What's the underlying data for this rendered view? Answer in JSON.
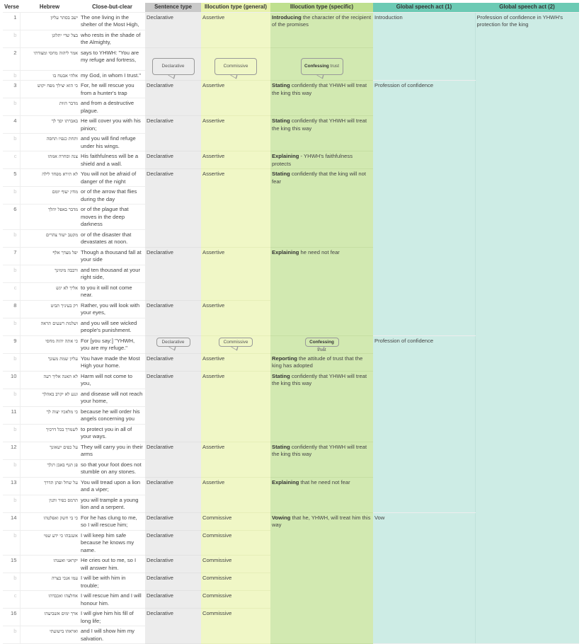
{
  "headers": [
    "Verse",
    "Hebrew",
    "Close-but-clear",
    "Sentence type",
    "Illocution type (general)",
    "Illocution type (specific)",
    "Global speech act (1)",
    "Global speech act (2)"
  ],
  "rows": [
    {
      "verse": "1",
      "hebrew": "ישב בסתר עליון",
      "english": "The one living in the shelter of the Most High,"
    },
    {
      "verse": "b",
      "hebrew": "בצל שדי יתלונן",
      "english": "who rests in the shade of the Almighty,"
    },
    {
      "verse": "2",
      "hebrew": "אמר ליהוה מחסי ומצודתי",
      "english": "says to YHWH: \"You are my refuge and fortress,"
    },
    {
      "verse": "b",
      "hebrew": "אלהי אבטח בו",
      "english": "my God, in whom I trust.\""
    },
    {
      "verse": "3",
      "hebrew": "כי הוא יצילך מפח יקוש",
      "english": "For, he will rescue you from a hunter's trap"
    },
    {
      "verse": "b",
      "hebrew": "מדבר הוות",
      "english": "and from a destructive plague."
    },
    {
      "verse": "4",
      "hebrew": "באברתו יסך לך",
      "english": "He will cover you with his pinion;"
    },
    {
      "verse": "b",
      "hebrew": "ותחת כנפיו תחסה",
      "english": "and you will find refuge under his wings."
    },
    {
      "verse": "c",
      "hebrew": "צנה וסחרה אמתו",
      "english": "His faithfulness will be a shield and a wall."
    },
    {
      "verse": "5",
      "hebrew": "לא תירא מפחד לילה",
      "english": "You will not be afraid of danger of the night"
    },
    {
      "verse": "b",
      "hebrew": "מחץ יעוף יומם",
      "english": "or of the arrow that flies during the day"
    },
    {
      "verse": "6",
      "hebrew": "מדבר באפל יהלך",
      "english": "or of the plague that moves in the deep darkness"
    },
    {
      "verse": "b",
      "hebrew": "מקטב ישוד צהרים",
      "english": "or of the disaster that devastates at noon."
    },
    {
      "verse": "7",
      "hebrew": "יפל מצדך אלף",
      "english": "Though a thousand fall at your side"
    },
    {
      "verse": "b",
      "hebrew": "ורבבה מימינך",
      "english": "and ten thousand at your right side,"
    },
    {
      "verse": "c",
      "hebrew": "אליך לא יגש",
      "english": "to you it will not come near."
    },
    {
      "verse": "8",
      "hebrew": "רק בעיניך תביט",
      "english": "Rather, you will look with your eyes,"
    },
    {
      "verse": "b",
      "hebrew": "ושלמת רשעים תראה",
      "english": "and you will see wicked people's punishment."
    },
    {
      "verse": "9",
      "hebrew": "כי אתה יהוה מחסי",
      "english": "For [you say:] \"YHWH, you are my refuge.\""
    },
    {
      "verse": "b",
      "hebrew": "עליון שמת מעונך",
      "english": "You have made the Most High your home."
    },
    {
      "verse": "10",
      "hebrew": "לא תאנה אליך רעה",
      "english": "Harm will not come to you,"
    },
    {
      "verse": "b",
      "hebrew": "ונגע לא יקרב באהלך",
      "english": "and disease will not reach your home,"
    },
    {
      "verse": "11",
      "hebrew": "כי מלאכיו יצוה לך",
      "english": "because he will order his angels concerning you"
    },
    {
      "verse": "b",
      "hebrew": "לשמרך בכל דרכיך",
      "english": "to protect you in all of your ways."
    },
    {
      "verse": "12",
      "hebrew": "על כפים ישאונך",
      "english": "They will carry you in their arms"
    },
    {
      "verse": "b",
      "hebrew": "פן תגף באבן רגלך",
      "english": "so that your foot does not stumble on any stones."
    },
    {
      "verse": "13",
      "hebrew": "על שחל ופתן תדרך",
      "english": "You will tread upon a lion and a viper;"
    },
    {
      "verse": "b",
      "hebrew": "תרמס כפיר ותנין",
      "english": "you will trample a young lion and a serpent."
    },
    {
      "verse": "14",
      "hebrew": "כי בי חשק ואפלטהו",
      "english": "For he has clung to me, so I will rescue him;"
    },
    {
      "verse": "b",
      "hebrew": "אשגבהו כי ידע שמי",
      "english": "I will keep him safe because he knows my name."
    },
    {
      "verse": "15",
      "hebrew": "יקראני ואענהו",
      "english": "He cries out to me, so I will answer him."
    },
    {
      "verse": "b",
      "hebrew": "עמו אנכי בצרה",
      "english": "I will be with him in trouble;"
    },
    {
      "verse": "c",
      "hebrew": "אחלצהו ואכבדהו",
      "english": "I will rescue him and I will honour him."
    },
    {
      "verse": "16",
      "hebrew": "ארך ימים אשביעהו",
      "english": "I will give him his fill of long life;"
    },
    {
      "verse": "b",
      "hebrew": "ואראהו בישועתי",
      "english": "and I will show him my salvation."
    }
  ],
  "sentence_type": [
    {
      "start": 0,
      "span": 2,
      "text": "Declarative"
    },
    {
      "start": 2,
      "span": 2,
      "text": "Declarative",
      "bubble": true
    },
    {
      "start": 4,
      "span": 2,
      "text": "Declarative"
    },
    {
      "start": 6,
      "span": 2,
      "text": "Declarative"
    },
    {
      "start": 8,
      "span": 1,
      "text": "Declarative"
    },
    {
      "start": 9,
      "span": 4,
      "text": "Declarative"
    },
    {
      "start": 13,
      "span": 3,
      "text": "Declarative"
    },
    {
      "start": 16,
      "span": 2,
      "text": "Declarative"
    },
    {
      "start": 18,
      "span": 1,
      "text": "Declarative",
      "bubble": true
    },
    {
      "start": 19,
      "span": 1,
      "text": "Declarative"
    },
    {
      "start": 20,
      "span": 4,
      "text": "Declarative"
    },
    {
      "start": 24,
      "span": 2,
      "text": "Declarative"
    },
    {
      "start": 26,
      "span": 2,
      "text": "Declarative"
    },
    {
      "start": 28,
      "span": 1,
      "text": "Declarative"
    },
    {
      "start": 29,
      "span": 1,
      "text": "Declarative"
    },
    {
      "start": 30,
      "span": 1,
      "text": "Declarative"
    },
    {
      "start": 31,
      "span": 1,
      "text": "Declarative"
    },
    {
      "start": 32,
      "span": 1,
      "text": "Declarative"
    },
    {
      "start": 33,
      "span": 2,
      "text": "Declarative"
    }
  ],
  "illocution_general": [
    {
      "start": 0,
      "span": 2,
      "text": "Assertive"
    },
    {
      "start": 2,
      "span": 2,
      "text": "Commissive",
      "bubble": true
    },
    {
      "start": 4,
      "span": 2,
      "text": "Assertive"
    },
    {
      "start": 6,
      "span": 2,
      "text": "Assertive"
    },
    {
      "start": 8,
      "span": 1,
      "text": "Assertive"
    },
    {
      "start": 9,
      "span": 4,
      "text": "Assertive"
    },
    {
      "start": 13,
      "span": 3,
      "text": "Assertive"
    },
    {
      "start": 16,
      "span": 2,
      "text": "Assertive"
    },
    {
      "start": 18,
      "span": 1,
      "text": "Commissive",
      "bubble": true
    },
    {
      "start": 19,
      "span": 1,
      "text": "Assertive"
    },
    {
      "start": 20,
      "span": 4,
      "text": "Assertive"
    },
    {
      "start": 24,
      "span": 2,
      "text": "Assertive"
    },
    {
      "start": 26,
      "span": 2,
      "text": "Assertive"
    },
    {
      "start": 28,
      "span": 1,
      "text": "Commissive"
    },
    {
      "start": 29,
      "span": 1,
      "text": "Commissive"
    },
    {
      "start": 30,
      "span": 1,
      "text": "Commissive"
    },
    {
      "start": 31,
      "span": 1,
      "text": "Commissive"
    },
    {
      "start": 32,
      "span": 1,
      "text": "Commissive"
    },
    {
      "start": 33,
      "span": 2,
      "text": "Commissive"
    }
  ],
  "illocution_specific": [
    {
      "start": 0,
      "span": 2,
      "bold": "Introducing",
      "rest": " the character of the recipient of the promises"
    },
    {
      "start": 2,
      "span": 2,
      "bold": "Confessing",
      "rest": " trust",
      "bubble": true
    },
    {
      "start": 4,
      "span": 2,
      "bold": "Stating",
      "rest": " confidently that YHWH will treat the king this way"
    },
    {
      "start": 6,
      "span": 2,
      "bold": "Stating",
      "rest": " confidently that YHWH will treat the king this way"
    },
    {
      "start": 8,
      "span": 1,
      "bold": "Explaining",
      "rest": " - YHWH's faithfulness protects"
    },
    {
      "start": 9,
      "span": 4,
      "bold": "Stating",
      "rest": " confidently that the king will not fear"
    },
    {
      "start": 13,
      "span": 5,
      "bold": "Explaining",
      "rest": " he need not fear"
    },
    {
      "start": 18,
      "span": 1,
      "bold": "Confessing",
      "rest": " trust",
      "bubble": true
    },
    {
      "start": 19,
      "span": 1,
      "bold": "Reporting",
      "rest": " the attitude of trust that the king has adopted"
    },
    {
      "start": 20,
      "span": 4,
      "bold": "Stating",
      "rest": " confidently that YHWH will treat the king this way"
    },
    {
      "start": 24,
      "span": 2,
      "bold": "Stating",
      "rest": " confidently that YHWH will treat the king this way"
    },
    {
      "start": 26,
      "span": 2,
      "bold": "Explaining",
      "rest": " that he need not fear"
    },
    {
      "start": 28,
      "span": 7,
      "bold": "Vowing",
      "rest": " that he, YHWH, will treat him this way"
    }
  ],
  "global_1": [
    {
      "start": 0,
      "span": 4,
      "text": "Introduction"
    },
    {
      "start": 4,
      "span": 14,
      "text": "Profession of confidence"
    },
    {
      "start": 18,
      "span": 10,
      "text": "Profession of confidence"
    },
    {
      "start": 28,
      "span": 7,
      "text": "Vow"
    }
  ],
  "global_2": [
    {
      "start": 0,
      "span": 35,
      "text": "Profession of confidence in YHWH's protection for the king"
    }
  ],
  "colors": {
    "sentence": "#ececec",
    "general": "#f0f7c6",
    "specific": "#d2e9b1",
    "global": "#cdece5",
    "global_header": "#6ccab4"
  }
}
